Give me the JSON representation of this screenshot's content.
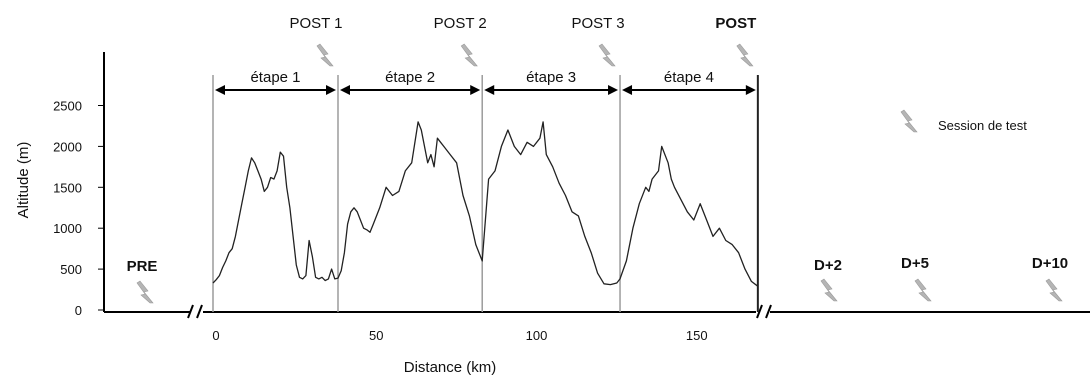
{
  "chart_data": {
    "type": "line",
    "xlabel": "Distance (km)",
    "ylabel": "Altitude (m)",
    "xlim": [
      0,
      170
    ],
    "ylim": [
      0,
      2500
    ],
    "x_ticks": [
      "0",
      "50",
      "100",
      "150"
    ],
    "x_tick_values": [
      0,
      50,
      100,
      150
    ],
    "y_ticks": [
      "0",
      "500",
      "1000",
      "1500",
      "2000",
      "2500"
    ],
    "y_tick_values": [
      0,
      500,
      1000,
      1500,
      2000,
      2500
    ],
    "grid": false,
    "stage_boundaries_km": [
      0,
      39,
      84,
      127,
      170
    ],
    "stages": [
      "étape 1",
      "étape 2",
      "étape 3",
      "étape 4"
    ],
    "posts": [
      "POST 1",
      "POST 2",
      "POST 3",
      "POST"
    ],
    "pre_label": "PRE",
    "after_labels": [
      "D+2",
      "D+5",
      "D+10"
    ],
    "legend": {
      "label": "Session de test",
      "icon": "lightning-icon"
    },
    "profile": {
      "x": [
        0,
        1,
        2,
        3,
        4,
        5,
        6,
        7,
        8,
        9,
        10,
        11,
        12,
        13,
        14,
        15,
        16,
        17,
        18,
        19,
        20,
        21,
        22,
        23,
        24,
        25,
        26,
        27,
        28,
        29,
        30,
        31,
        32,
        33,
        34,
        35,
        36,
        37,
        38,
        39,
        40,
        41,
        42,
        43,
        44,
        45,
        46,
        47,
        48,
        49,
        50,
        52,
        54,
        56,
        58,
        60,
        62,
        64,
        65,
        66,
        67,
        68,
        69,
        70,
        71,
        72,
        74,
        76,
        78,
        80,
        82,
        84,
        86,
        88,
        90,
        92,
        94,
        96,
        98,
        100,
        102,
        103,
        104,
        106,
        108,
        110,
        112,
        114,
        116,
        118,
        120,
        122,
        124,
        126,
        127,
        129,
        131,
        133,
        135,
        136,
        137,
        138,
        139,
        140,
        142,
        143,
        144,
        146,
        148,
        150,
        152,
        154,
        156,
        158,
        160,
        162,
        164,
        166,
        168,
        170
      ],
      "y": [
        330,
        370,
        420,
        520,
        600,
        700,
        750,
        900,
        1100,
        1300,
        1500,
        1700,
        1860,
        1800,
        1700,
        1600,
        1450,
        1500,
        1620,
        1600,
        1700,
        1930,
        1880,
        1500,
        1250,
        900,
        550,
        400,
        380,
        420,
        850,
        650,
        400,
        380,
        400,
        360,
        380,
        500,
        380,
        390,
        480,
        700,
        1050,
        1200,
        1250,
        1200,
        1100,
        1000,
        980,
        950,
        1050,
        1250,
        1500,
        1400,
        1450,
        1700,
        1800,
        2300,
        2200,
        2000,
        1800,
        1900,
        1750,
        2100,
        2050,
        2000,
        1900,
        1800,
        1400,
        1150,
        800,
        600,
        1600,
        1700,
        2000,
        2200,
        2000,
        1900,
        2050,
        2000,
        2100,
        2300,
        1900,
        1750,
        1550,
        1400,
        1200,
        1150,
        900,
        700,
        450,
        320,
        310,
        330,
        380,
        600,
        1000,
        1300,
        1500,
        1450,
        1600,
        1650,
        1700,
        2000,
        1800,
        1600,
        1500,
        1350,
        1200,
        1100,
        1300,
        1100,
        900,
        1000,
        850,
        800,
        700,
        500,
        350,
        290
      ]
    }
  }
}
